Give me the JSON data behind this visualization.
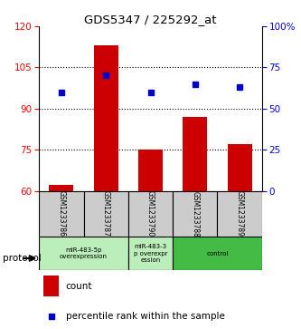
{
  "title": "GDS5347 / 225292_at",
  "samples": [
    "GSM1233786",
    "GSM1233787",
    "GSM1233790",
    "GSM1233788",
    "GSM1233789"
  ],
  "counts": [
    62,
    113,
    75,
    87,
    77
  ],
  "percentiles": [
    60,
    70,
    60,
    65,
    63
  ],
  "left_ylim": [
    60,
    120
  ],
  "right_ylim": [
    0,
    100
  ],
  "left_yticks": [
    60,
    75,
    90,
    105,
    120
  ],
  "right_yticks": [
    0,
    25,
    50,
    75,
    100
  ],
  "right_yticklabels": [
    "0",
    "25",
    "50",
    "75",
    "100%"
  ],
  "bar_color": "#cc0000",
  "dot_color": "#0000cc",
  "grid_yticks": [
    75,
    90,
    105
  ],
  "bar_width": 0.55,
  "proto_groups": [
    {
      "start": 0,
      "end": 1,
      "label": "miR-483-5p\noverexpression",
      "color": "#bbeebb"
    },
    {
      "start": 2,
      "end": 2,
      "label": "miR-483-3\np overexpr\nession",
      "color": "#bbeebb"
    },
    {
      "start": 3,
      "end": 4,
      "label": "control",
      "color": "#44bb44"
    }
  ],
  "sample_box_color": "#cccccc",
  "legend_count_label": "count",
  "legend_pct_label": "percentile rank within the sample"
}
